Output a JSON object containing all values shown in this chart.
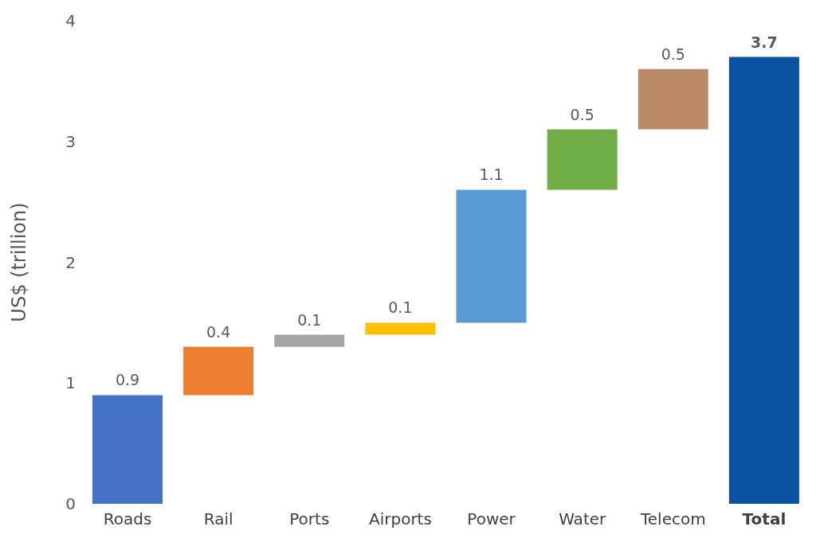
{
  "chart_data": {
    "type": "bar",
    "ylabel": "US$ (trillion)",
    "categories": [
      "Roads",
      "Rail",
      "Ports",
      "Airports",
      "Power",
      "Water",
      "Telecom",
      "Total"
    ],
    "values": [
      0.9,
      0.4,
      0.1,
      0.1,
      1.1,
      0.5,
      0.5,
      3.7
    ],
    "base": [
      0,
      0.9,
      1.3,
      1.4,
      1.5,
      2.6,
      3.1,
      0
    ],
    "colors": [
      "#4472c4",
      "#ed7d31",
      "#a5a5a5",
      "#ffc000",
      "#5b9bd5",
      "#70ad47",
      "#bb8a67",
      "#0a52a1"
    ],
    "ylim": [
      0,
      4
    ],
    "yticks": [
      0,
      1,
      2,
      3,
      4
    ],
    "grid": false,
    "data_labels": true
  }
}
